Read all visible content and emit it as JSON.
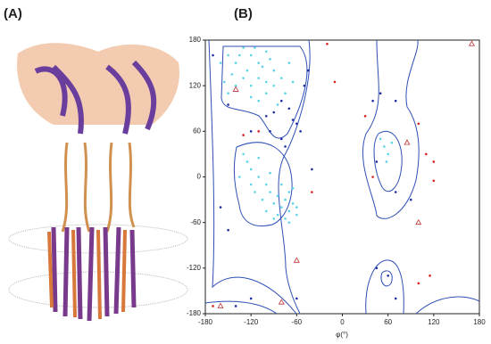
{
  "panel_labels": [
    "(A)",
    "(B)"
  ],
  "chart_data": {
    "type": "scatter",
    "x_label": "φ(°)",
    "xlim": [
      -180,
      180
    ],
    "ylim": [
      -180,
      180
    ],
    "xticks": [
      -180,
      -120,
      -60,
      0,
      60,
      120,
      180
    ],
    "yticks": [
      -180,
      -120,
      -60,
      0,
      60,
      120,
      180
    ],
    "series": [
      {
        "color": "#5ad4e6",
        "marker": "circle",
        "x": [
          -150,
          -140,
          -130,
          -120,
          -110,
          -100,
          -90,
          -80,
          -130,
          -120,
          -110,
          -140,
          -150,
          -100,
          -90,
          -70,
          -75,
          -85,
          -125,
          -135,
          -115,
          -105,
          -95,
          -145,
          -160,
          -155,
          -65,
          -110,
          -120,
          -100,
          -80,
          -70,
          -75,
          -85,
          -65,
          -90,
          -95,
          -100,
          -110,
          -120,
          -115,
          -105,
          -90,
          -75,
          -60,
          -70,
          -80,
          -125,
          -130,
          -110,
          -95,
          -85,
          -60,
          -100,
          -120,
          -135,
          -70,
          -65,
          55,
          60,
          50,
          65,
          58
        ],
        "values": [
          160,
          150,
          170,
          160,
          150,
          165,
          140,
          130,
          130,
          120,
          130,
          120,
          110,
          110,
          120,
          150,
          110,
          95,
          140,
          160,
          170,
          145,
          155,
          135,
          150,
          125,
          125,
          100,
          105,
          125,
          -40,
          -45,
          -30,
          -50,
          -35,
          -35,
          -20,
          -10,
          0,
          10,
          -20,
          -30,
          -55,
          -55,
          -40,
          -20,
          -10,
          20,
          30,
          25,
          5,
          -25,
          -50,
          -45,
          -10,
          0,
          -60,
          -15,
          40,
          30,
          50,
          45,
          20
        ]
      },
      {
        "color": "#1f2fa0",
        "marker": "circle",
        "x": [
          -80,
          -70,
          -65,
          -60,
          -55,
          -90,
          -100,
          -150,
          -170,
          -160,
          -150,
          -140,
          -120,
          -60,
          -40,
          40,
          50,
          70,
          -50,
          -45,
          45,
          70,
          90,
          45,
          60,
          70,
          -95,
          -80,
          -75,
          -120
        ],
        "values": [
          100,
          90,
          75,
          70,
          60,
          85,
          80,
          95,
          160,
          -40,
          -70,
          -170,
          -160,
          -160,
          10,
          100,
          110,
          100,
          120,
          140,
          20,
          -20,
          -30,
          -120,
          -130,
          -160,
          60,
          50,
          40,
          60
        ]
      },
      {
        "color": "#d62020",
        "marker": "circle",
        "x": [
          -110,
          -130,
          -10,
          30,
          100,
          110,
          120,
          120,
          40,
          115,
          100,
          -170,
          -20,
          -40
        ],
        "values": [
          60,
          55,
          125,
          80,
          70,
          30,
          20,
          -5,
          0,
          -130,
          -140,
          -170,
          175,
          -20
        ]
      },
      {
        "color": "#c03030",
        "marker": "triangle",
        "x": [
          -140,
          -160,
          -80,
          170,
          100,
          85,
          -60
        ],
        "values": [
          115,
          -170,
          -165,
          175,
          -60,
          45,
          -110
        ]
      }
    ]
  }
}
